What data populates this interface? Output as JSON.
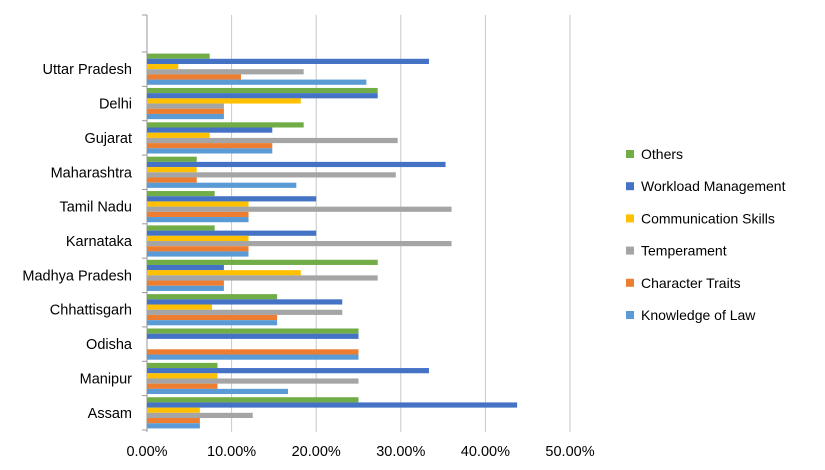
{
  "chart_data": {
    "type": "bar",
    "orientation": "horizontal",
    "categories": [
      "Uttar Pradesh",
      "Delhi",
      "Gujarat",
      "Maharashtra",
      "Tamil Nadu",
      "Karnataka",
      "Madhya Pradesh",
      "Chhattisgarh",
      "Odisha",
      "Manipur",
      "Assam"
    ],
    "series": [
      {
        "name": "Others",
        "color": "#70AD47",
        "values": [
          7.41,
          27.27,
          18.52,
          5.88,
          8.0,
          8.0,
          27.27,
          15.38,
          25.0,
          8.33,
          25.0
        ]
      },
      {
        "name": "Workload Management",
        "color": "#4472C4",
        "values": [
          33.33,
          27.27,
          14.81,
          35.29,
          20.0,
          20.0,
          9.09,
          23.08,
          25.0,
          33.33,
          43.75
        ]
      },
      {
        "name": "Communication Skills",
        "color": "#FFC000",
        "values": [
          3.7,
          18.18,
          7.41,
          5.88,
          12.0,
          12.0,
          18.18,
          7.69,
          0,
          8.33,
          6.25
        ]
      },
      {
        "name": "Temperament",
        "color": "#A5A5A5",
        "values": [
          18.52,
          9.09,
          29.63,
          29.41,
          36.0,
          36.0,
          27.27,
          23.08,
          0,
          25.0,
          12.5
        ]
      },
      {
        "name": "Character Traits",
        "color": "#ED7D31",
        "values": [
          11.11,
          9.09,
          14.81,
          5.88,
          12.0,
          12.0,
          9.09,
          15.38,
          25.0,
          8.33,
          6.25
        ]
      },
      {
        "name": "Knowledge of Law",
        "color": "#5B9BD5",
        "values": [
          25.93,
          9.09,
          14.81,
          17.65,
          12.0,
          12.0,
          9.09,
          15.38,
          25.0,
          16.67,
          6.25
        ]
      }
    ],
    "xlim": [
      0,
      50
    ],
    "x_ticks": [
      "0.00%",
      "10.00%",
      "20.00%",
      "30.00%",
      "40.00%",
      "50.00%"
    ],
    "grid": true,
    "legend_position": "right",
    "title": "",
    "xlabel": "",
    "ylabel": ""
  }
}
